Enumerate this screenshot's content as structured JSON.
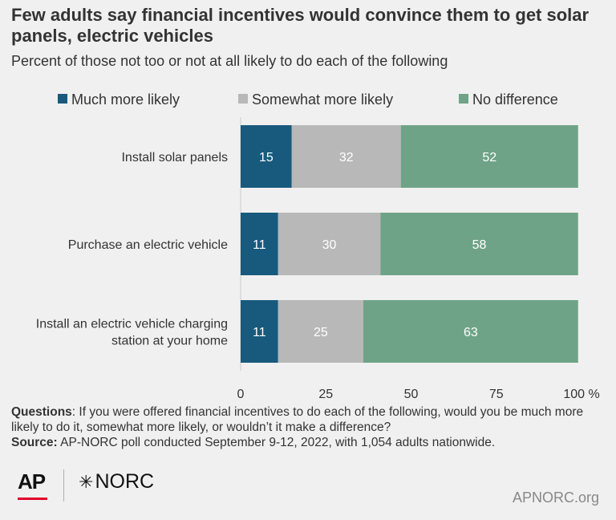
{
  "title": "Few adults say financial incentives would convince them to get solar panels, electric vehicles",
  "subtitle": "Percent of those not too or not at all likely to do each of the following",
  "colors": {
    "much": "#185a7d",
    "somewhat": "#b8b8b8",
    "nodiff": "#6fa387",
    "background": "#f0f0f0",
    "text": "#333333"
  },
  "chart_data": {
    "type": "bar",
    "orientation": "horizontal",
    "stacked": true,
    "categories": [
      [
        "Install solar panels"
      ],
      [
        "Purchase an electric vehicle"
      ],
      [
        "Install an electric vehicle charging",
        "station at your home"
      ]
    ],
    "series": [
      {
        "name": "Much more likely",
        "values": [
          15,
          11,
          11
        ],
        "color": "#185a7d"
      },
      {
        "name": "Somewhat more likely",
        "values": [
          32,
          30,
          25
        ],
        "color": "#b8b8b8"
      },
      {
        "name": "No difference",
        "values": [
          52,
          58,
          63
        ],
        "color": "#6fa387"
      }
    ],
    "xlim": [
      0,
      100
    ],
    "xticks": [
      "0",
      "25",
      "50",
      "75",
      "100 %"
    ],
    "xtick_values": [
      0,
      25,
      50,
      75,
      100
    ],
    "legend_position": "top"
  },
  "footer": {
    "questions_label": "Questions",
    "questions_text": ": If you were offered financial incentives to do each of the following, would you be much more likely to do it, somewhat more likely, or wouldn’t it make a difference?",
    "source_label": "Source:",
    "source_text": " AP-NORC poll conducted September 9-12, 2022, with 1,054 adults nationwide."
  },
  "logos": {
    "ap": "AP",
    "norc": "NORC",
    "norc_symbol": "✳"
  },
  "site": "APNORC.org"
}
